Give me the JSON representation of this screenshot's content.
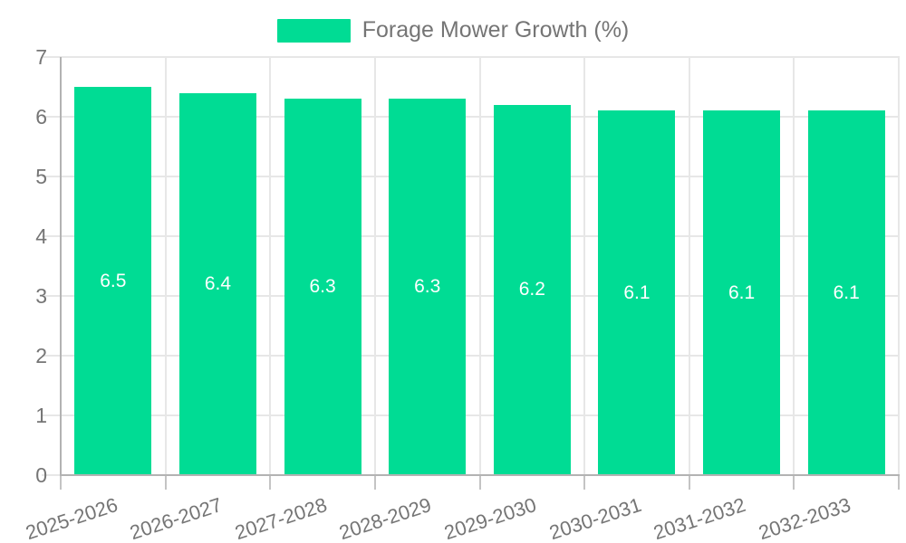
{
  "chart_data": {
    "type": "bar",
    "title": "Forage Mower Growth (%)",
    "categories": [
      "2025-2026",
      "2026-2027",
      "2027-2028",
      "2028-2029",
      "2029-2030",
      "2030-2031",
      "2031-2032",
      "2032-2033"
    ],
    "values": [
      6.5,
      6.4,
      6.3,
      6.3,
      6.2,
      6.1,
      6.1,
      6.1
    ],
    "value_labels": [
      "6.5",
      "6.4",
      "6.3",
      "6.3",
      "6.2",
      "6.1",
      "6.1",
      "6.1"
    ],
    "xlabel": "",
    "ylabel": "",
    "ylim": [
      0,
      7
    ],
    "yticks": [
      0,
      1,
      2,
      3,
      4,
      5,
      6,
      7
    ],
    "grid": true,
    "legend_position": "top-center",
    "x_label_rotation_deg": -18,
    "colors": {
      "bar": "#00DC94",
      "bar_label": "#FFFFFF",
      "axis_text": "#757575",
      "legend_text": "#757575",
      "grid_line": "#E7E7E7",
      "axis_line": "#B3B3B3",
      "tick_line": "#C4C4C4",
      "background": "#FFFFFF"
    }
  }
}
